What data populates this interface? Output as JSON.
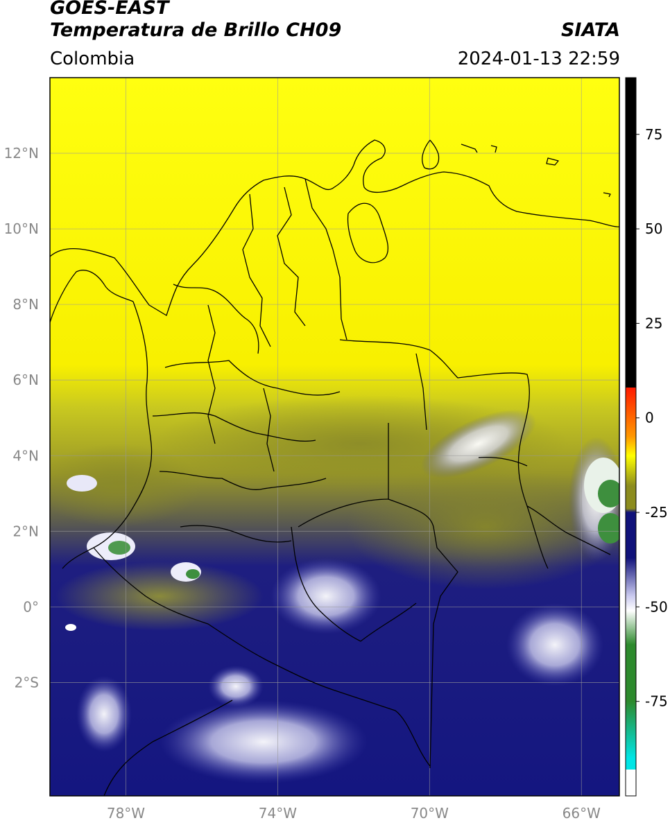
{
  "header": {
    "satellite": "GOES-EAST",
    "product": "Temperatura de Brillo CH09",
    "organization": "SIATA",
    "region": "Colombia",
    "timestamp": "2024-01-13 22:59"
  },
  "map": {
    "lon_range": [
      -80,
      -65
    ],
    "lat_range": [
      -5,
      14
    ],
    "lat_ticks": [
      {
        "value": 12,
        "label": "12°N"
      },
      {
        "value": 10,
        "label": "10°N"
      },
      {
        "value": 8,
        "label": "8°N"
      },
      {
        "value": 6,
        "label": "6°N"
      },
      {
        "value": 4,
        "label": "4°N"
      },
      {
        "value": 2,
        "label": "2°N"
      },
      {
        "value": 0,
        "label": "0°"
      },
      {
        "value": -2,
        "label": "2°S"
      }
    ],
    "lon_ticks": [
      {
        "value": -78,
        "label": "78°W"
      },
      {
        "value": -74,
        "label": "74°W"
      },
      {
        "value": -70,
        "label": "70°W"
      },
      {
        "value": -66,
        "label": "66°W"
      }
    ],
    "grid": true
  },
  "colorbar": {
    "range": [
      -100,
      90
    ],
    "ticks": [
      {
        "value": 75,
        "label": "75"
      },
      {
        "value": 50,
        "label": "50"
      },
      {
        "value": 25,
        "label": "25"
      },
      {
        "value": 0,
        "label": "0"
      },
      {
        "value": -25,
        "label": "-25"
      },
      {
        "value": -50,
        "label": "-50"
      },
      {
        "value": -75,
        "label": "-75"
      }
    ],
    "colors": {
      "black": "#000000",
      "red": "#ff1a00",
      "orange": "#ff9900",
      "yellow": "#ffff00",
      "olive": "#8c8c1e",
      "navy": "#10127a",
      "lavender": "#c8c8ee",
      "white": "#ffffff",
      "green": "#2d8a2d",
      "cyan": "#00e5e5"
    }
  }
}
